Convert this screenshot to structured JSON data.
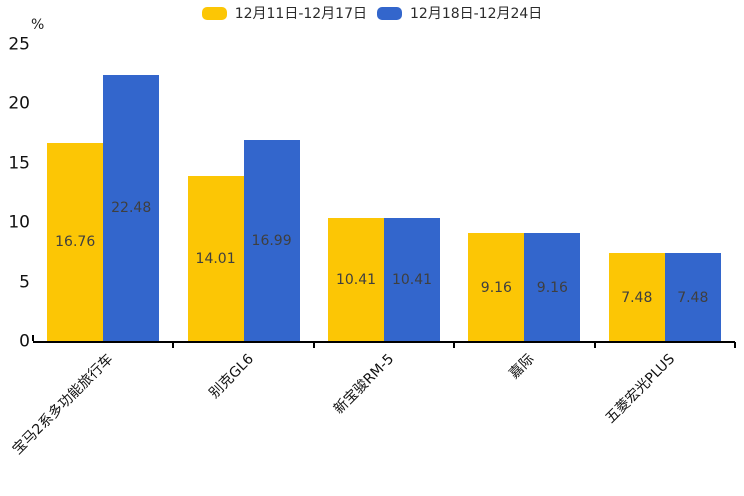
{
  "legend": {
    "items": [
      {
        "label": "12月11日-12月17日",
        "color": "#FCC605"
      },
      {
        "label": "12月18日-12月24日",
        "color": "#3366CC"
      }
    ]
  },
  "chart_data": {
    "type": "bar",
    "title": "",
    "categories": [
      "宝马2系多功能旅行车",
      "别克GL6",
      "新宝骏RM-5",
      "嘉际",
      "五菱宏光PLUS"
    ],
    "series": [
      {
        "name": "12月11日-12月17日",
        "color": "#FCC605",
        "values": [
          16.76,
          14.01,
          10.41,
          9.16,
          7.48
        ]
      },
      {
        "name": "12月18日-12月24日",
        "color": "#3366CC",
        "values": [
          22.48,
          16.99,
          10.41,
          9.16,
          7.48
        ]
      }
    ],
    "ylabel": "%",
    "ylim": [
      0,
      25
    ],
    "yticks": [
      0,
      5,
      10,
      15,
      20,
      25
    ],
    "grid": false,
    "legend_position": "top-center",
    "value_labels": "inside-center",
    "value_label_decimals": 2,
    "value_label_color": "#3F3F3F",
    "axis_color": "#000000"
  }
}
